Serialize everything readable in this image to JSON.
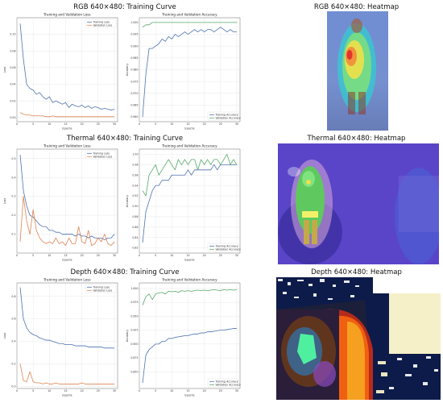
{
  "rows": [
    {
      "title": "RGB 640×480: Training Curve",
      "heatmap_title": "RGB 640×480: Heatmap",
      "heatmap_icon": "person-heatmap-image"
    },
    {
      "title": "Thermal 640×480: Training Curve",
      "heatmap_title": "Thermal 640×480: Heatmap",
      "heatmap_icon": "person-heatmap-image"
    },
    {
      "title": "Depth 640×480: Training Curve",
      "heatmap_title": "Depth 640×480: Heatmap",
      "heatmap_icon": "depth-heatmap-image"
    }
  ],
  "chart_data": [
    {
      "type": "line",
      "title": "Training and Validation Loss",
      "xlabel": "Epochs",
      "ylabel": "Loss",
      "xlim": [
        0,
        31
      ],
      "ylim": [
        -0.005,
        0.12
      ],
      "xticks": [
        0,
        5,
        10,
        15,
        20,
        25,
        30
      ],
      "yticks": [
        0.0,
        0.02,
        0.04,
        0.06,
        0.08,
        0.1
      ],
      "ytick_labels": [
        "0.00",
        "0.02",
        "0.04",
        "0.06",
        "0.08",
        "0.10"
      ],
      "legend": "top-right",
      "grid": true,
      "x": [
        1,
        2,
        3,
        4,
        5,
        6,
        7,
        8,
        9,
        10,
        11,
        12,
        13,
        14,
        15,
        16,
        17,
        18,
        19,
        20,
        21,
        22,
        23,
        24,
        25,
        26,
        27,
        28,
        29,
        30
      ],
      "series": [
        {
          "name": "Training Loss",
          "color": "#4c72b0",
          "values": [
            0.113,
            0.07,
            0.04,
            0.035,
            0.033,
            0.028,
            0.03,
            0.025,
            0.022,
            0.025,
            0.018,
            0.02,
            0.018,
            0.016,
            0.018,
            0.012,
            0.016,
            0.014,
            0.013,
            0.015,
            0.012,
            0.014,
            0.011,
            0.013,
            0.012,
            0.01,
            0.011,
            0.01,
            0.009,
            0.01
          ]
        },
        {
          "name": "Validation Loss",
          "color": "#dd8452",
          "values": [
            0.006,
            0.004,
            0.003,
            0.003,
            0.002,
            0.002,
            0.002,
            0.002,
            0.001,
            0.001,
            0.002,
            0.001,
            0.001,
            0.001,
            0.001,
            0.001,
            0.001,
            0.001,
            0.001,
            0.001,
            0.001,
            0.001,
            0.001,
            0.001,
            0.001,
            0.001,
            0.001,
            0.001,
            0.001,
            0.001
          ]
        }
      ]
    },
    {
      "type": "line",
      "title": "Training and Validation Accuracy",
      "xlabel": "Epochs",
      "ylabel": "Accuracy",
      "xlim": [
        0,
        31
      ],
      "ylim": [
        0.958,
        1.002
      ],
      "xticks": [
        0,
        5,
        10,
        15,
        20,
        25,
        30
      ],
      "yticks": [
        0.96,
        0.965,
        0.97,
        0.975,
        0.98,
        0.985,
        0.99,
        0.995,
        1.0
      ],
      "ytick_labels": [
        "0.960",
        "0.965",
        "0.970",
        "0.975",
        "0.980",
        "0.985",
        "0.990",
        "0.995",
        "1.000"
      ],
      "legend": "bottom-right",
      "grid": true,
      "x": [
        1,
        2,
        3,
        4,
        5,
        6,
        7,
        8,
        9,
        10,
        11,
        12,
        13,
        14,
        15,
        16,
        17,
        18,
        19,
        20,
        21,
        22,
        23,
        24,
        25,
        26,
        27,
        28,
        29,
        30
      ],
      "series": [
        {
          "name": "Training Accuracy",
          "color": "#4c72b0",
          "values": [
            0.96,
            0.978,
            0.989,
            0.989,
            0.99,
            0.991,
            0.993,
            0.992,
            0.994,
            0.993,
            0.995,
            0.994,
            0.995,
            0.996,
            0.995,
            0.996,
            0.997,
            0.996,
            0.997,
            0.996,
            0.997,
            0.997,
            0.996,
            0.997,
            0.998,
            0.997,
            0.996,
            0.997,
            0.996,
            0.996
          ]
        },
        {
          "name": "Validation Accuracy",
          "color": "#55a868",
          "values": [
            0.998,
            0.999,
            0.999,
            1.0,
            1.0,
            1.0,
            1.0,
            1.0,
            1.0,
            1.0,
            1.0,
            1.0,
            1.0,
            1.0,
            1.0,
            1.0,
            1.0,
            1.0,
            1.0,
            1.0,
            1.0,
            1.0,
            1.0,
            1.0,
            1.0,
            1.0,
            1.0,
            1.0,
            1.0,
            1.0
          ]
        }
      ]
    },
    {
      "type": "line",
      "title": "Training and Validation Loss",
      "xlabel": "Epochs",
      "ylabel": "Loss",
      "xlim": [
        0,
        31
      ],
      "ylim": [
        0.0,
        0.55
      ],
      "xticks": [
        0,
        5,
        10,
        15,
        20,
        25,
        30
      ],
      "yticks": [
        0.1,
        0.2,
        0.3,
        0.4,
        0.5
      ],
      "ytick_labels": [
        "0.1",
        "0.2",
        "0.3",
        "0.4",
        "0.5"
      ],
      "legend": "top-right",
      "grid": true,
      "x": [
        1,
        2,
        3,
        4,
        5,
        6,
        7,
        8,
        9,
        10,
        11,
        12,
        13,
        14,
        15,
        16,
        17,
        18,
        19,
        20,
        21,
        22,
        23,
        24,
        25,
        26,
        27,
        28,
        29,
        30
      ],
      "series": [
        {
          "name": "Training Loss",
          "color": "#4c72b0",
          "values": [
            0.52,
            0.33,
            0.25,
            0.2,
            0.19,
            0.17,
            0.15,
            0.14,
            0.14,
            0.12,
            0.12,
            0.11,
            0.11,
            0.1,
            0.1,
            0.1,
            0.1,
            0.09,
            0.1,
            0.09,
            0.09,
            0.08,
            0.09,
            0.08,
            0.08,
            0.08,
            0.07,
            0.08,
            0.08,
            0.1
          ]
        },
        {
          "name": "Validation Loss",
          "color": "#dd8452",
          "values": [
            0.06,
            0.3,
            0.17,
            0.1,
            0.23,
            0.12,
            0.08,
            0.06,
            0.05,
            0.06,
            0.05,
            0.08,
            0.05,
            0.06,
            0.04,
            0.08,
            0.05,
            0.05,
            0.14,
            0.06,
            0.05,
            0.12,
            0.04,
            0.05,
            0.08,
            0.06,
            0.1,
            0.05,
            0.04,
            0.06
          ]
        }
      ]
    },
    {
      "type": "line",
      "title": "Training and Validation Accuracy",
      "xlabel": "Epochs",
      "ylabel": "Accuracy",
      "xlim": [
        0,
        31
      ],
      "ylim": [
        0.81,
        1.01
      ],
      "xticks": [
        0,
        5,
        10,
        15,
        20,
        25,
        30
      ],
      "yticks": [
        0.82,
        0.84,
        0.86,
        0.88,
        0.9,
        0.92,
        0.94,
        0.96,
        0.98,
        1.0
      ],
      "ytick_labels": [
        "0.82",
        "0.84",
        "0.86",
        "0.88",
        "0.90",
        "0.92",
        "0.94",
        "0.96",
        "0.98",
        "1.00"
      ],
      "legend": "bottom-right",
      "grid": true,
      "x": [
        1,
        2,
        3,
        4,
        5,
        6,
        7,
        8,
        9,
        10,
        11,
        12,
        13,
        14,
        15,
        16,
        17,
        18,
        19,
        20,
        21,
        22,
        23,
        24,
        25,
        26,
        27,
        28,
        29,
        30
      ],
      "series": [
        {
          "name": "Training Accuracy",
          "color": "#4c72b0",
          "values": [
            0.83,
            0.89,
            0.91,
            0.93,
            0.94,
            0.94,
            0.95,
            0.95,
            0.95,
            0.96,
            0.96,
            0.96,
            0.96,
            0.96,
            0.97,
            0.96,
            0.97,
            0.97,
            0.97,
            0.97,
            0.97,
            0.97,
            0.98,
            0.97,
            0.98,
            0.98,
            0.98,
            0.98,
            0.98,
            0.98
          ]
        },
        {
          "name": "Validation Accuracy",
          "color": "#55a868",
          "values": [
            0.93,
            0.92,
            0.96,
            0.97,
            0.98,
            0.96,
            0.97,
            0.98,
            0.99,
            0.98,
            0.97,
            0.99,
            0.98,
            0.99,
            0.98,
            0.99,
            0.99,
            0.97,
            0.99,
            0.98,
            0.99,
            0.98,
            0.99,
            0.99,
            0.98,
            0.99,
            1.0,
            0.98,
            0.99,
            0.98
          ]
        }
      ]
    },
    {
      "type": "line",
      "title": "Training and Validation Loss",
      "xlabel": "Epochs",
      "ylabel": "Loss",
      "xlim": [
        0,
        31
      ],
      "ylim": [
        -0.02,
        0.92
      ],
      "xticks": [
        0,
        5,
        10,
        15,
        20,
        25,
        30
      ],
      "yticks": [
        0.0,
        0.2,
        0.4,
        0.6,
        0.8
      ],
      "ytick_labels": [
        "0.0",
        "0.2",
        "0.4",
        "0.6",
        "0.8"
      ],
      "legend": "top-right",
      "grid": true,
      "x": [
        1,
        2,
        3,
        4,
        5,
        6,
        7,
        8,
        9,
        10,
        11,
        12,
        13,
        14,
        15,
        16,
        17,
        18,
        19,
        20,
        21,
        22,
        23,
        24,
        25,
        26,
        27,
        28,
        29,
        30
      ],
      "series": [
        {
          "name": "Training Loss",
          "color": "#4c72b0",
          "values": [
            0.88,
            0.6,
            0.52,
            0.48,
            0.46,
            0.45,
            0.43,
            0.42,
            0.41,
            0.41,
            0.4,
            0.39,
            0.38,
            0.38,
            0.37,
            0.37,
            0.37,
            0.36,
            0.36,
            0.36,
            0.36,
            0.35,
            0.35,
            0.35,
            0.35,
            0.35,
            0.34,
            0.34,
            0.34,
            0.34
          ]
        },
        {
          "name": "Validation Loss",
          "color": "#dd8452",
          "values": [
            0.2,
            0.05,
            0.04,
            0.13,
            0.04,
            0.03,
            0.03,
            0.02,
            0.03,
            0.02,
            0.02,
            0.03,
            0.02,
            0.02,
            0.02,
            0.02,
            0.02,
            0.02,
            0.02,
            0.03,
            0.02,
            0.02,
            0.02,
            0.02,
            0.02,
            0.02,
            0.02,
            0.02,
            0.02,
            0.02
          ]
        }
      ]
    },
    {
      "type": "line",
      "title": "Training and Validation Accuracy",
      "xlabel": "Epochs",
      "ylabel": "Accuracy",
      "xlim": [
        0,
        31
      ],
      "ylim": [
        0.82,
        1.01
      ],
      "xticks": [
        0,
        5,
        10,
        15,
        20,
        25,
        30
      ],
      "yticks": [
        0.85,
        0.875,
        0.9,
        0.925,
        0.95,
        0.975,
        1.0
      ],
      "ytick_labels": [
        "0.850",
        "0.875",
        "0.900",
        "0.925",
        "0.950",
        "0.975",
        "1.000"
      ],
      "legend": "bottom-right",
      "grid": true,
      "x": [
        1,
        2,
        3,
        4,
        5,
        6,
        7,
        8,
        9,
        10,
        11,
        12,
        13,
        14,
        15,
        16,
        17,
        18,
        19,
        20,
        21,
        22,
        23,
        24,
        25,
        26,
        27,
        28,
        29,
        30
      ],
      "series": [
        {
          "name": "Training Accuracy",
          "color": "#4c72b0",
          "values": [
            0.83,
            0.88,
            0.89,
            0.895,
            0.9,
            0.9,
            0.905,
            0.905,
            0.91,
            0.91,
            0.912,
            0.913,
            0.914,
            0.915,
            0.915,
            0.917,
            0.918,
            0.918,
            0.92,
            0.92,
            0.922,
            0.922,
            0.923,
            0.924,
            0.925,
            0.925,
            0.926,
            0.927,
            0.928,
            0.928
          ]
        },
        {
          "name": "Validation Accuracy",
          "color": "#55a868",
          "values": [
            0.97,
            0.985,
            0.99,
            0.98,
            0.99,
            0.992,
            0.993,
            0.99,
            0.995,
            0.994,
            0.995,
            0.993,
            0.996,
            0.995,
            0.996,
            0.995,
            0.996,
            0.997,
            0.996,
            0.997,
            0.996,
            0.997,
            0.998,
            0.997,
            0.996,
            0.998,
            0.997,
            0.998,
            0.997,
            0.998
          ]
        }
      ]
    }
  ]
}
